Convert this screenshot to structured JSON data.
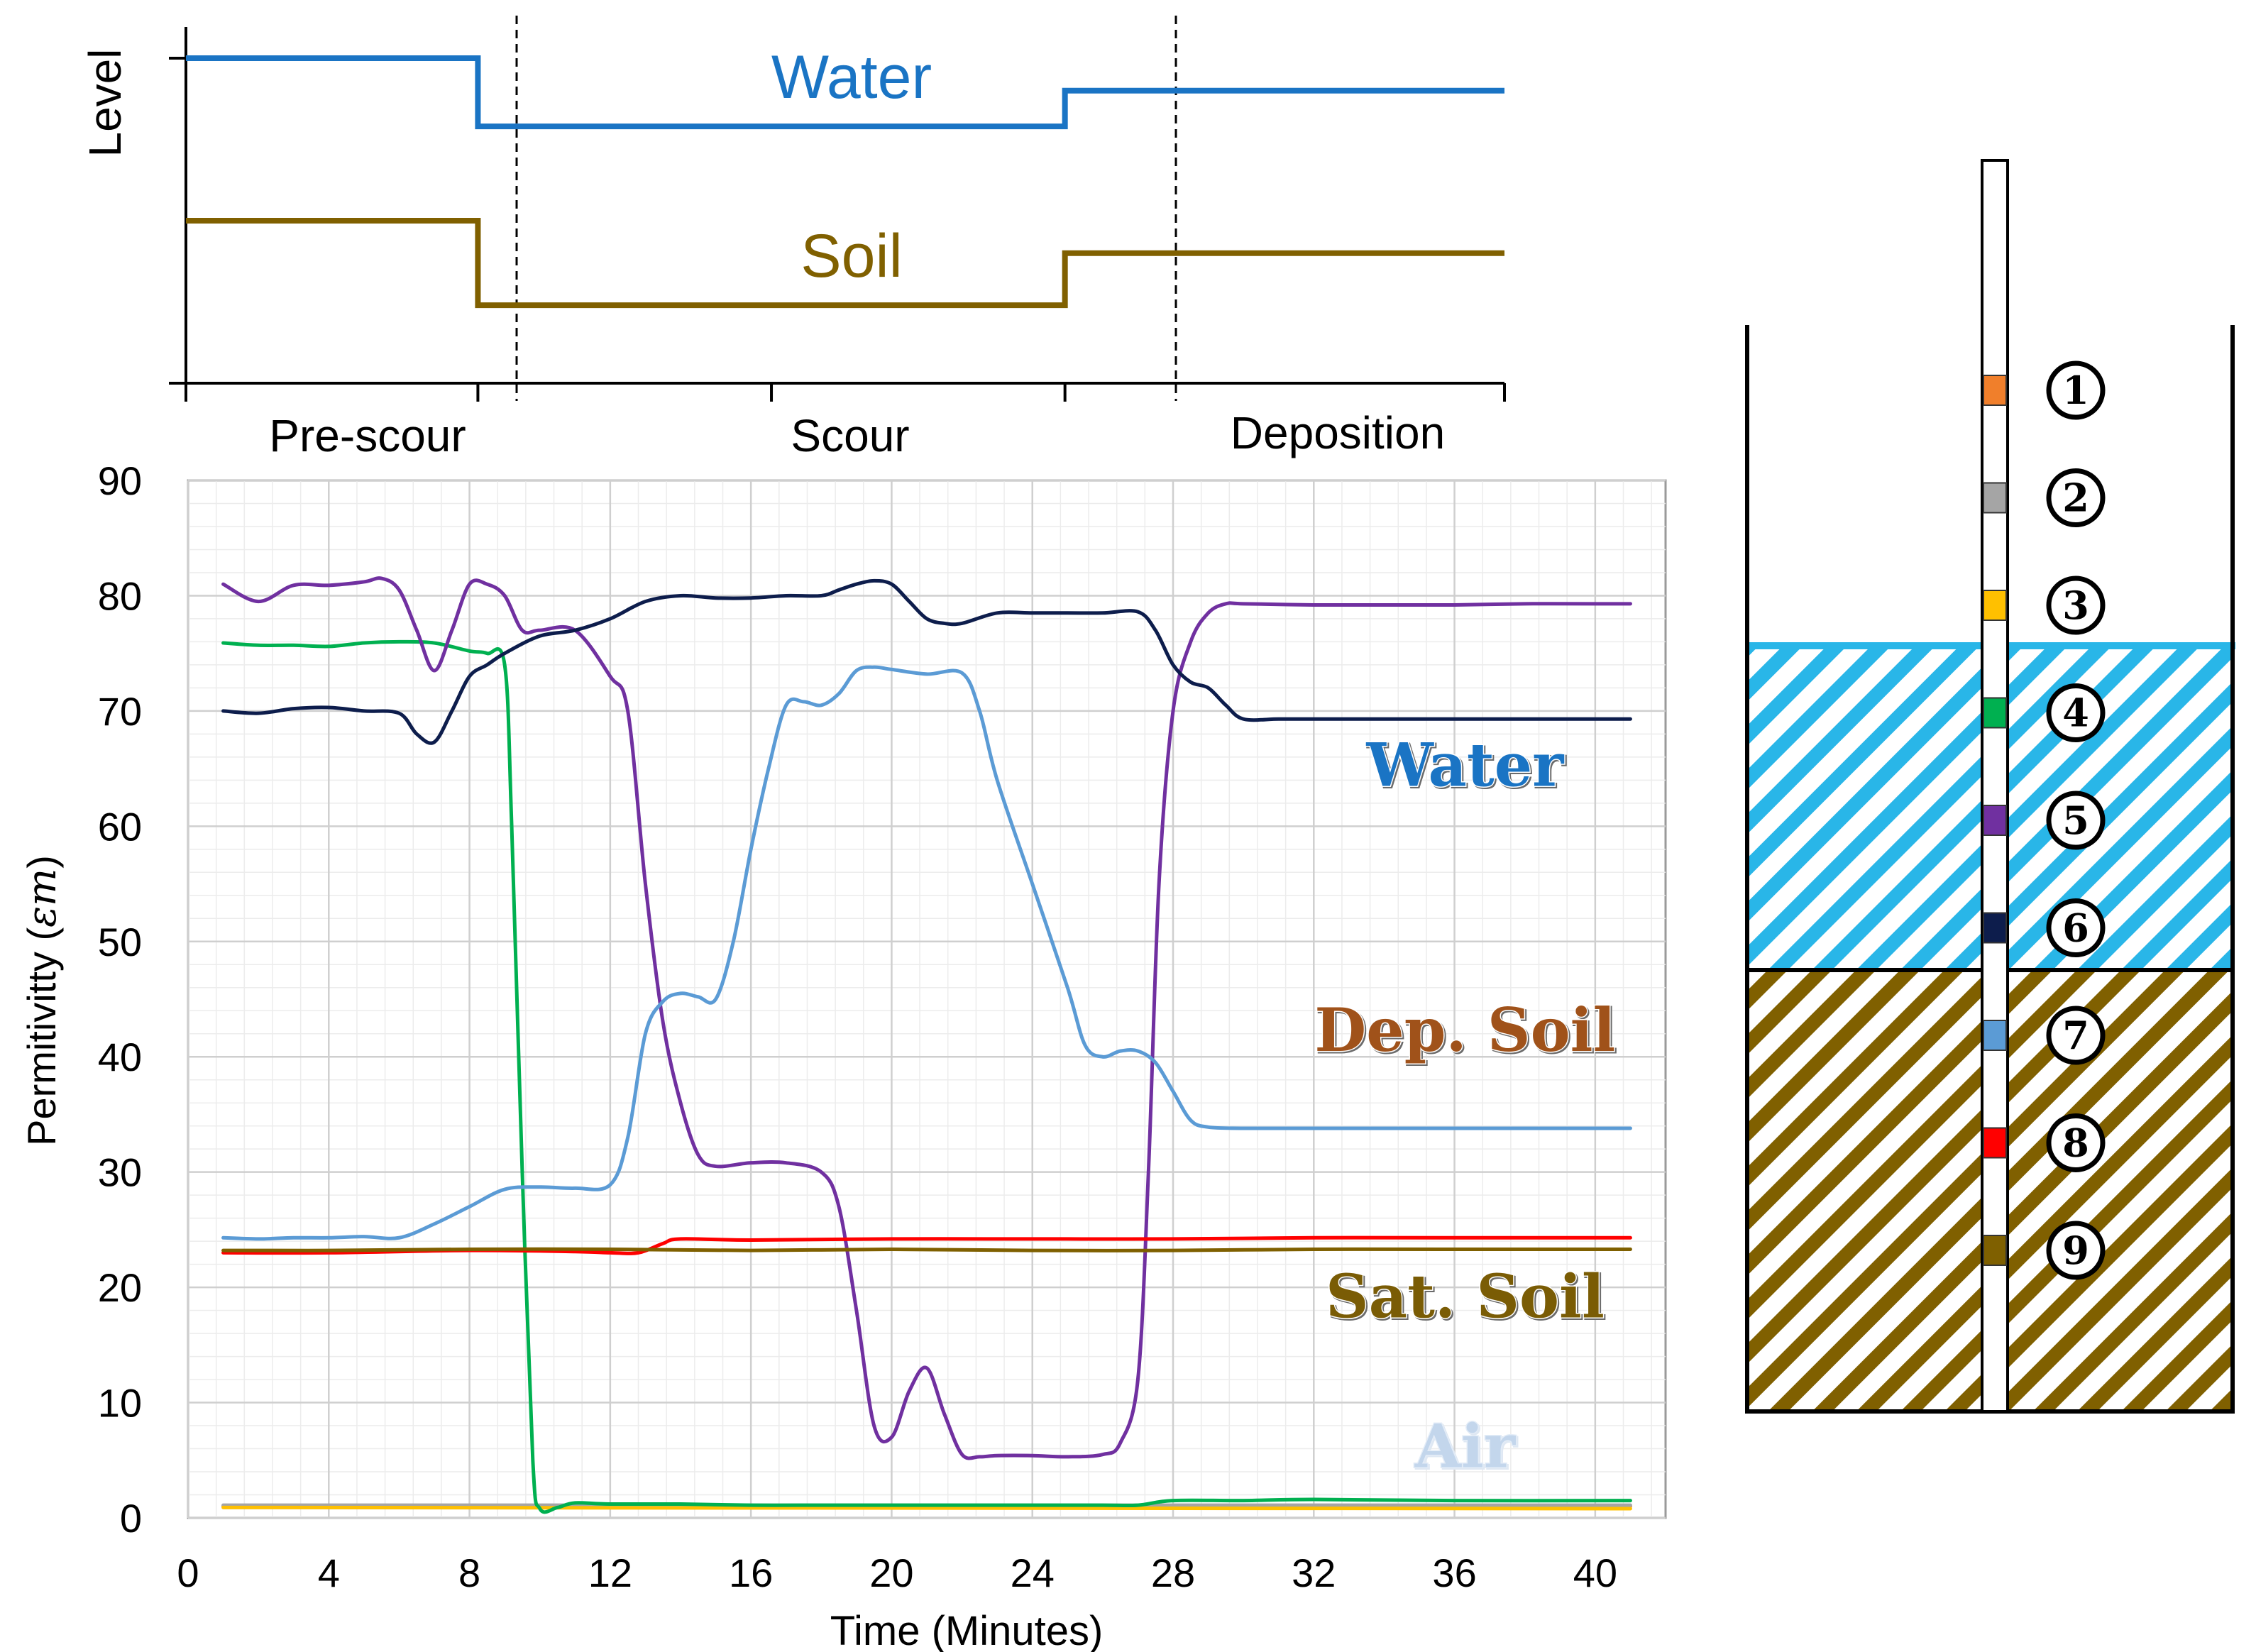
{
  "top_chart": {
    "ylabel": "Level",
    "phases": [
      "Pre-scour",
      "Scour",
      "Deposition"
    ],
    "phase_boundaries_min": [
      9.3,
      28.0
    ],
    "series": [
      {
        "name": "Water",
        "color": "#1a74c4",
        "levels": [
          0.0,
          0.21,
          0.1
        ]
      },
      {
        "name": "Soil",
        "color": "#806000",
        "levels": [
          0.5,
          0.76,
          0.6
        ]
      }
    ]
  },
  "chart_data": {
    "type": "line",
    "title": "",
    "xlabel": "Time (Minutes)",
    "ylabel": "Permitivitty (",
    "ylabel_symbol": "εm",
    "ylabel_close": ")",
    "xlim": [
      0,
      42
    ],
    "ylim": [
      0,
      90
    ],
    "xticks": [
      0,
      4,
      8,
      12,
      16,
      20,
      24,
      28,
      32,
      36,
      40
    ],
    "yticks": [
      0,
      10,
      20,
      30,
      40,
      50,
      60,
      70,
      80,
      90
    ],
    "grid": true,
    "annotations": [
      {
        "text": "Water",
        "x": 36.3,
        "y": 63.5,
        "color": "#1a74c4"
      },
      {
        "text": "Dep. Soil",
        "x": 36.3,
        "y": 40.5,
        "color": "#a0521a"
      },
      {
        "text": "Sat. Soil",
        "x": 36.3,
        "y": 17.4,
        "color": "#7a5c05"
      },
      {
        "text": "Air",
        "x": 36.3,
        "y": 4.4,
        "color": "#c3d6ec"
      }
    ],
    "series": [
      {
        "name": "Sensor 1",
        "color": "#f07f2b",
        "x": [
          1,
          41
        ],
        "y": [
          1.0,
          1.0
        ]
      },
      {
        "name": "Sensor 2",
        "color": "#a5a5a5",
        "x": [
          1,
          41
        ],
        "y": [
          1.1,
          1.1
        ]
      },
      {
        "name": "Sensor 3",
        "color": "#ffc000",
        "x": [
          1,
          41
        ],
        "y": [
          0.9,
          0.8
        ]
      },
      {
        "name": "Sensor 4",
        "color": "#00b050",
        "x": [
          1,
          2,
          3,
          4,
          5,
          6,
          7,
          8,
          8.5,
          9,
          9.2,
          9.5,
          9.8,
          10,
          10.5,
          11,
          12,
          14,
          16,
          18,
          20,
          22,
          24,
          26,
          27,
          28,
          30,
          32,
          36,
          41
        ],
        "y": [
          75.9,
          75.7,
          75.7,
          75.6,
          75.9,
          76.0,
          75.9,
          75.2,
          75.0,
          74.0,
          60.0,
          30.0,
          5.0,
          0.8,
          0.9,
          1.3,
          1.2,
          1.2,
          1.1,
          1.1,
          1.1,
          1.1,
          1.1,
          1.1,
          1.1,
          1.5,
          1.5,
          1.6,
          1.5,
          1.5
        ]
      },
      {
        "name": "Sensor 5",
        "color": "#7030a0",
        "x": [
          1,
          2,
          3,
          4,
          5,
          5.5,
          6,
          6.5,
          7,
          7.5,
          8,
          8.5,
          9,
          9.5,
          10,
          11,
          12,
          12.5,
          13,
          13.5,
          14,
          14.5,
          15,
          16,
          17,
          18,
          18.5,
          19,
          19.5,
          20,
          20.5,
          21,
          21.5,
          22,
          22.5,
          23,
          24,
          25,
          26,
          26.5,
          27,
          27.3,
          27.6,
          28,
          28.5,
          29,
          29.5,
          30,
          32,
          34,
          36,
          38,
          40,
          41
        ],
        "y": [
          81.0,
          79.5,
          80.9,
          80.9,
          81.2,
          81.5,
          80.5,
          77.0,
          73.5,
          77.0,
          81.0,
          81.0,
          80.0,
          77.0,
          77.0,
          77.0,
          73.0,
          70.0,
          55.0,
          43.0,
          36.0,
          31.5,
          30.5,
          30.8,
          30.8,
          30.0,
          27.0,
          18.0,
          8.0,
          7.0,
          11.0,
          13.0,
          9.0,
          5.5,
          5.3,
          5.4,
          5.4,
          5.3,
          5.5,
          6.5,
          12.0,
          30.0,
          55.0,
          70.0,
          76.0,
          78.5,
          79.3,
          79.3,
          79.2,
          79.2,
          79.2,
          79.3,
          79.3,
          79.3
        ]
      },
      {
        "name": "Sensor 6",
        "color": "#0d1d4c",
        "x": [
          1,
          2,
          3,
          4,
          5,
          6,
          6.5,
          7,
          7.5,
          8,
          8.5,
          9,
          10,
          11,
          12,
          13,
          14,
          15,
          16,
          17,
          18,
          18.5,
          19,
          19.5,
          20,
          20.5,
          21,
          21.5,
          22,
          23,
          24,
          25,
          26,
          27,
          27.5,
          28,
          28.5,
          29,
          29.5,
          30,
          31,
          32,
          34,
          36,
          38,
          40,
          41
        ],
        "y": [
          70.0,
          69.8,
          70.2,
          70.3,
          70.0,
          69.8,
          68.0,
          67.3,
          70.0,
          73.0,
          74.0,
          75.0,
          76.5,
          77.0,
          78.0,
          79.5,
          80.0,
          79.8,
          79.8,
          80.0,
          80.0,
          80.5,
          81.0,
          81.3,
          81.0,
          79.5,
          78.0,
          77.6,
          77.6,
          78.5,
          78.5,
          78.5,
          78.5,
          78.6,
          77.0,
          74.0,
          72.5,
          72.0,
          70.5,
          69.3,
          69.3,
          69.3,
          69.3,
          69.3,
          69.3,
          69.3,
          69.3
        ]
      },
      {
        "name": "Sensor 7",
        "color": "#5b9bd5",
        "x": [
          1,
          2,
          3,
          4,
          5,
          6,
          7,
          8,
          9,
          10,
          11,
          12,
          12.5,
          13,
          13.5,
          14,
          14.5,
          15,
          15.5,
          16,
          16.5,
          17,
          17.5,
          18,
          18.5,
          19,
          19.5,
          20,
          21,
          22,
          22.5,
          23,
          24,
          25,
          25.5,
          26,
          26.5,
          27,
          27.5,
          28,
          28.5,
          29,
          30,
          32,
          34,
          36,
          38,
          40,
          41
        ],
        "y": [
          24.3,
          24.2,
          24.3,
          24.3,
          24.4,
          24.3,
          25.5,
          27.0,
          28.5,
          28.7,
          28.6,
          28.9,
          33.0,
          42.0,
          44.8,
          45.5,
          45.2,
          45.0,
          50.0,
          58.0,
          65.0,
          70.5,
          70.8,
          70.5,
          71.5,
          73.5,
          73.8,
          73.6,
          73.2,
          73.3,
          70.0,
          64.0,
          55.0,
          46.0,
          41.0,
          40.0,
          40.5,
          40.5,
          39.5,
          37.0,
          34.5,
          33.9,
          33.8,
          33.8,
          33.8,
          33.8,
          33.8,
          33.8,
          33.8
        ]
      },
      {
        "name": "Sensor 8",
        "color": "#ff0000",
        "x": [
          1,
          4,
          8,
          11,
          12,
          12.8,
          13.5,
          14,
          16,
          20,
          24,
          28,
          32,
          36,
          41
        ],
        "y": [
          23.0,
          23.0,
          23.2,
          23.1,
          23.0,
          23.0,
          23.8,
          24.2,
          24.1,
          24.2,
          24.2,
          24.2,
          24.3,
          24.3,
          24.3
        ]
      },
      {
        "name": "Sensor 9",
        "color": "#7f6000",
        "x": [
          1,
          4,
          8,
          12,
          16,
          20,
          24,
          28,
          32,
          36,
          41
        ],
        "y": [
          23.2,
          23.2,
          23.3,
          23.3,
          23.2,
          23.3,
          23.2,
          23.2,
          23.3,
          23.3,
          23.3
        ]
      }
    ]
  },
  "schematic": {
    "sensor_labels": [
      "1",
      "2",
      "3",
      "4",
      "5",
      "6",
      "7",
      "8",
      "9"
    ],
    "sensor_colors": [
      "#f07f2b",
      "#a5a5a5",
      "#ffc000",
      "#00b050",
      "#7030a0",
      "#0d1d4c",
      "#5b9bd5",
      "#ff0000",
      "#7f6000"
    ],
    "water_color": "#29b6e8",
    "soil_color": "#806000"
  }
}
